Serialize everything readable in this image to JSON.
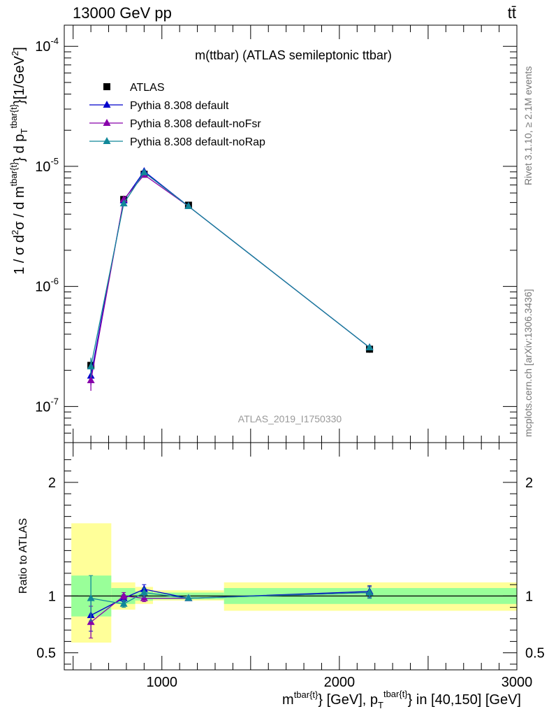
{
  "header": {
    "left": "13000 GeV pp",
    "right": "tt̄"
  },
  "side_labels": {
    "rivet": "Rivet 3.1.10, ≥ 2.1M events",
    "mcplots": "mcplots.cern.ch [arXiv:1306.3436]"
  },
  "chart_data": [
    {
      "type": "line",
      "title": "m(ttbar) (ATLAS semileptonic ttbar)",
      "watermark": "ATLAS_2019_I1750330",
      "ylabel": "1 / σ d²σ / d m^{tbar{t}} d p_T^{tbar{t}} [1/GeV²]",
      "yscale": "log",
      "xlim": [
        450,
        3000
      ],
      "ylim": [
        5e-08,
        0.00015
      ],
      "x": [
        600,
        785,
        900,
        1150,
        2170
      ],
      "series": [
        {
          "name": "ATLAS",
          "color": "#000000",
          "marker": "square",
          "values": [
            2.2e-07,
            5.3e-06,
            8.6e-06,
            4.75e-06,
            3e-07
          ],
          "err": [
            3e-08,
            3e-07,
            5e-07,
            2e-07,
            2e-08
          ]
        },
        {
          "name": "Pythia 8.308 default",
          "color": "#0000cc",
          "marker": "triangle",
          "values": [
            1.8e-07,
            5.2e-06,
            9.1e-06,
            4.65e-06,
            3.1e-07
          ],
          "err": [
            3e-08,
            1e-07,
            3e-07,
            1e-07,
            1e-08
          ]
        },
        {
          "name": "Pythia 8.308 default-noFsr",
          "color": "#8800aa",
          "marker": "triangle",
          "values": [
            1.65e-07,
            5.3e-06,
            8.5e-06,
            4.65e-06,
            3.1e-07
          ],
          "err": [
            3e-08,
            1e-07,
            3e-07,
            1e-07,
            1e-08
          ]
        },
        {
          "name": "Pythia 8.308 default-noRap",
          "color": "#118899",
          "marker": "triangle",
          "values": [
            2.15e-07,
            4.9e-06,
            8.9e-06,
            4.65e-06,
            3.1e-07
          ],
          "err": [
            4e-08,
            1e-07,
            3e-07,
            1e-07,
            1e-08
          ]
        }
      ],
      "legend": "top-left"
    },
    {
      "type": "line",
      "ylabel": "Ratio to ATLAS",
      "xlabel": "m^{tbar{t}} [GeV], p_T^{tbar{t}} in [40,150] [GeV]",
      "xlim": [
        450,
        3000
      ],
      "ylim": [
        0.35,
        2.35
      ],
      "x_ticks": [
        "1000",
        "2000",
        "3000"
      ],
      "y_ticks": [
        "0.5",
        "1",
        "2"
      ],
      "bands": [
        {
          "x0": 490,
          "x1": 715,
          "inner": [
            0.82,
            1.18
          ],
          "outer": [
            0.59,
            1.64
          ],
          "inner2": [
            0.59,
            0.82
          ]
        },
        {
          "x0": 715,
          "x1": 850,
          "inner": [
            0.93,
            1.07
          ],
          "outer": [
            0.88,
            1.12
          ]
        },
        {
          "x0": 850,
          "x1": 950,
          "inner": [
            0.96,
            1.04
          ],
          "outer": [
            0.93,
            1.08
          ]
        },
        {
          "x0": 950,
          "x1": 1350,
          "inner": [
            0.97,
            1.03
          ],
          "outer": [
            0.96,
            1.05
          ]
        },
        {
          "x0": 1350,
          "x1": 3000,
          "inner": [
            0.93,
            1.07
          ],
          "outer": [
            0.87,
            1.12
          ]
        }
      ],
      "series": [
        {
          "name": "Pythia 8.308 default",
          "color": "#0000cc",
          "values": [
            0.83,
            0.98,
            1.06,
            0.98,
            1.04
          ],
          "err": [
            0.14,
            0.03,
            0.04,
            0.02,
            0.05
          ]
        },
        {
          "name": "Pythia 8.308 default-noFsr",
          "color": "#8800aa",
          "values": [
            0.77,
            1.0,
            0.98,
            0.98,
            1.03
          ],
          "err": [
            0.14,
            0.03,
            0.03,
            0.02,
            0.05
          ]
        },
        {
          "name": "Pythia 8.308 default-noRap",
          "color": "#118899",
          "values": [
            0.98,
            0.93,
            1.03,
            0.98,
            1.03
          ],
          "err": [
            0.2,
            0.03,
            0.04,
            0.02,
            0.05
          ]
        }
      ]
    }
  ]
}
